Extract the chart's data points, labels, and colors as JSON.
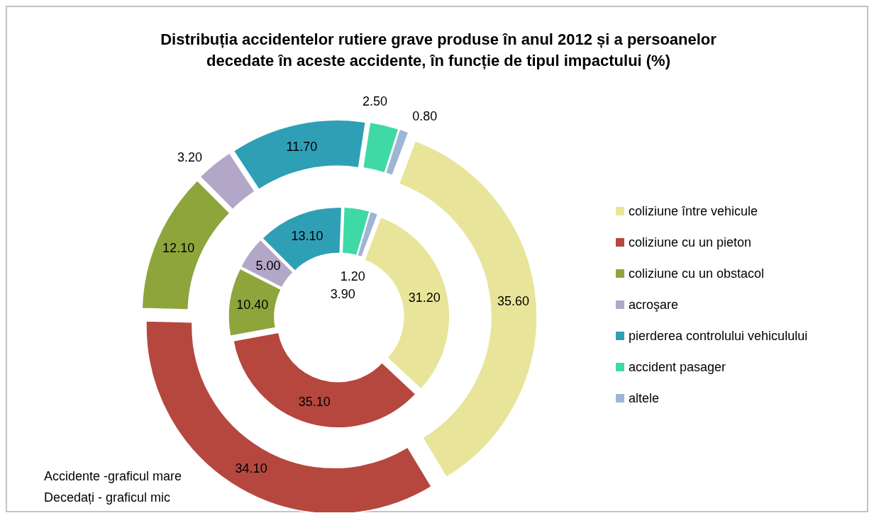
{
  "chart_data": {
    "type": "donut",
    "title": "Distribuția accidentelor rutiere grave produse în anul 2012 și a persoanelor decedate în aceste accidente, în funcție de tipul impactului (%)",
    "categories": [
      "coliziune între vehicule",
      "coliziune cu un pieton",
      "coliziune cu un obstacol",
      "acroşare",
      "pierderea controlului vehiculului",
      "accident pasager",
      "altele"
    ],
    "colors": [
      "#e8e59a",
      "#b5473f",
      "#8ea53c",
      "#b3a7c8",
      "#2f9fb5",
      "#3fd9a5",
      "#9fb5d6"
    ],
    "series": [
      {
        "values": [
          35.6,
          34.1,
          12.1,
          3.2,
          11.7,
          2.5,
          0.8
        ],
        "value_labels": [
          "35.60",
          "34.10",
          "12.10",
          "3.20",
          "11.70",
          "2.50",
          "0.80"
        ]
      },
      {
        "values": [
          31.2,
          35.1,
          10.4,
          5.0,
          13.1,
          3.9,
          1.2
        ],
        "value_labels": [
          "31.20",
          "35.10",
          "10.40",
          "5.00",
          "13.10",
          "3.90",
          "1.20"
        ]
      }
    ],
    "legend": "right",
    "annotations": [
      "Accidente -graficul mare",
      "Decedați - graficul mic"
    ]
  }
}
